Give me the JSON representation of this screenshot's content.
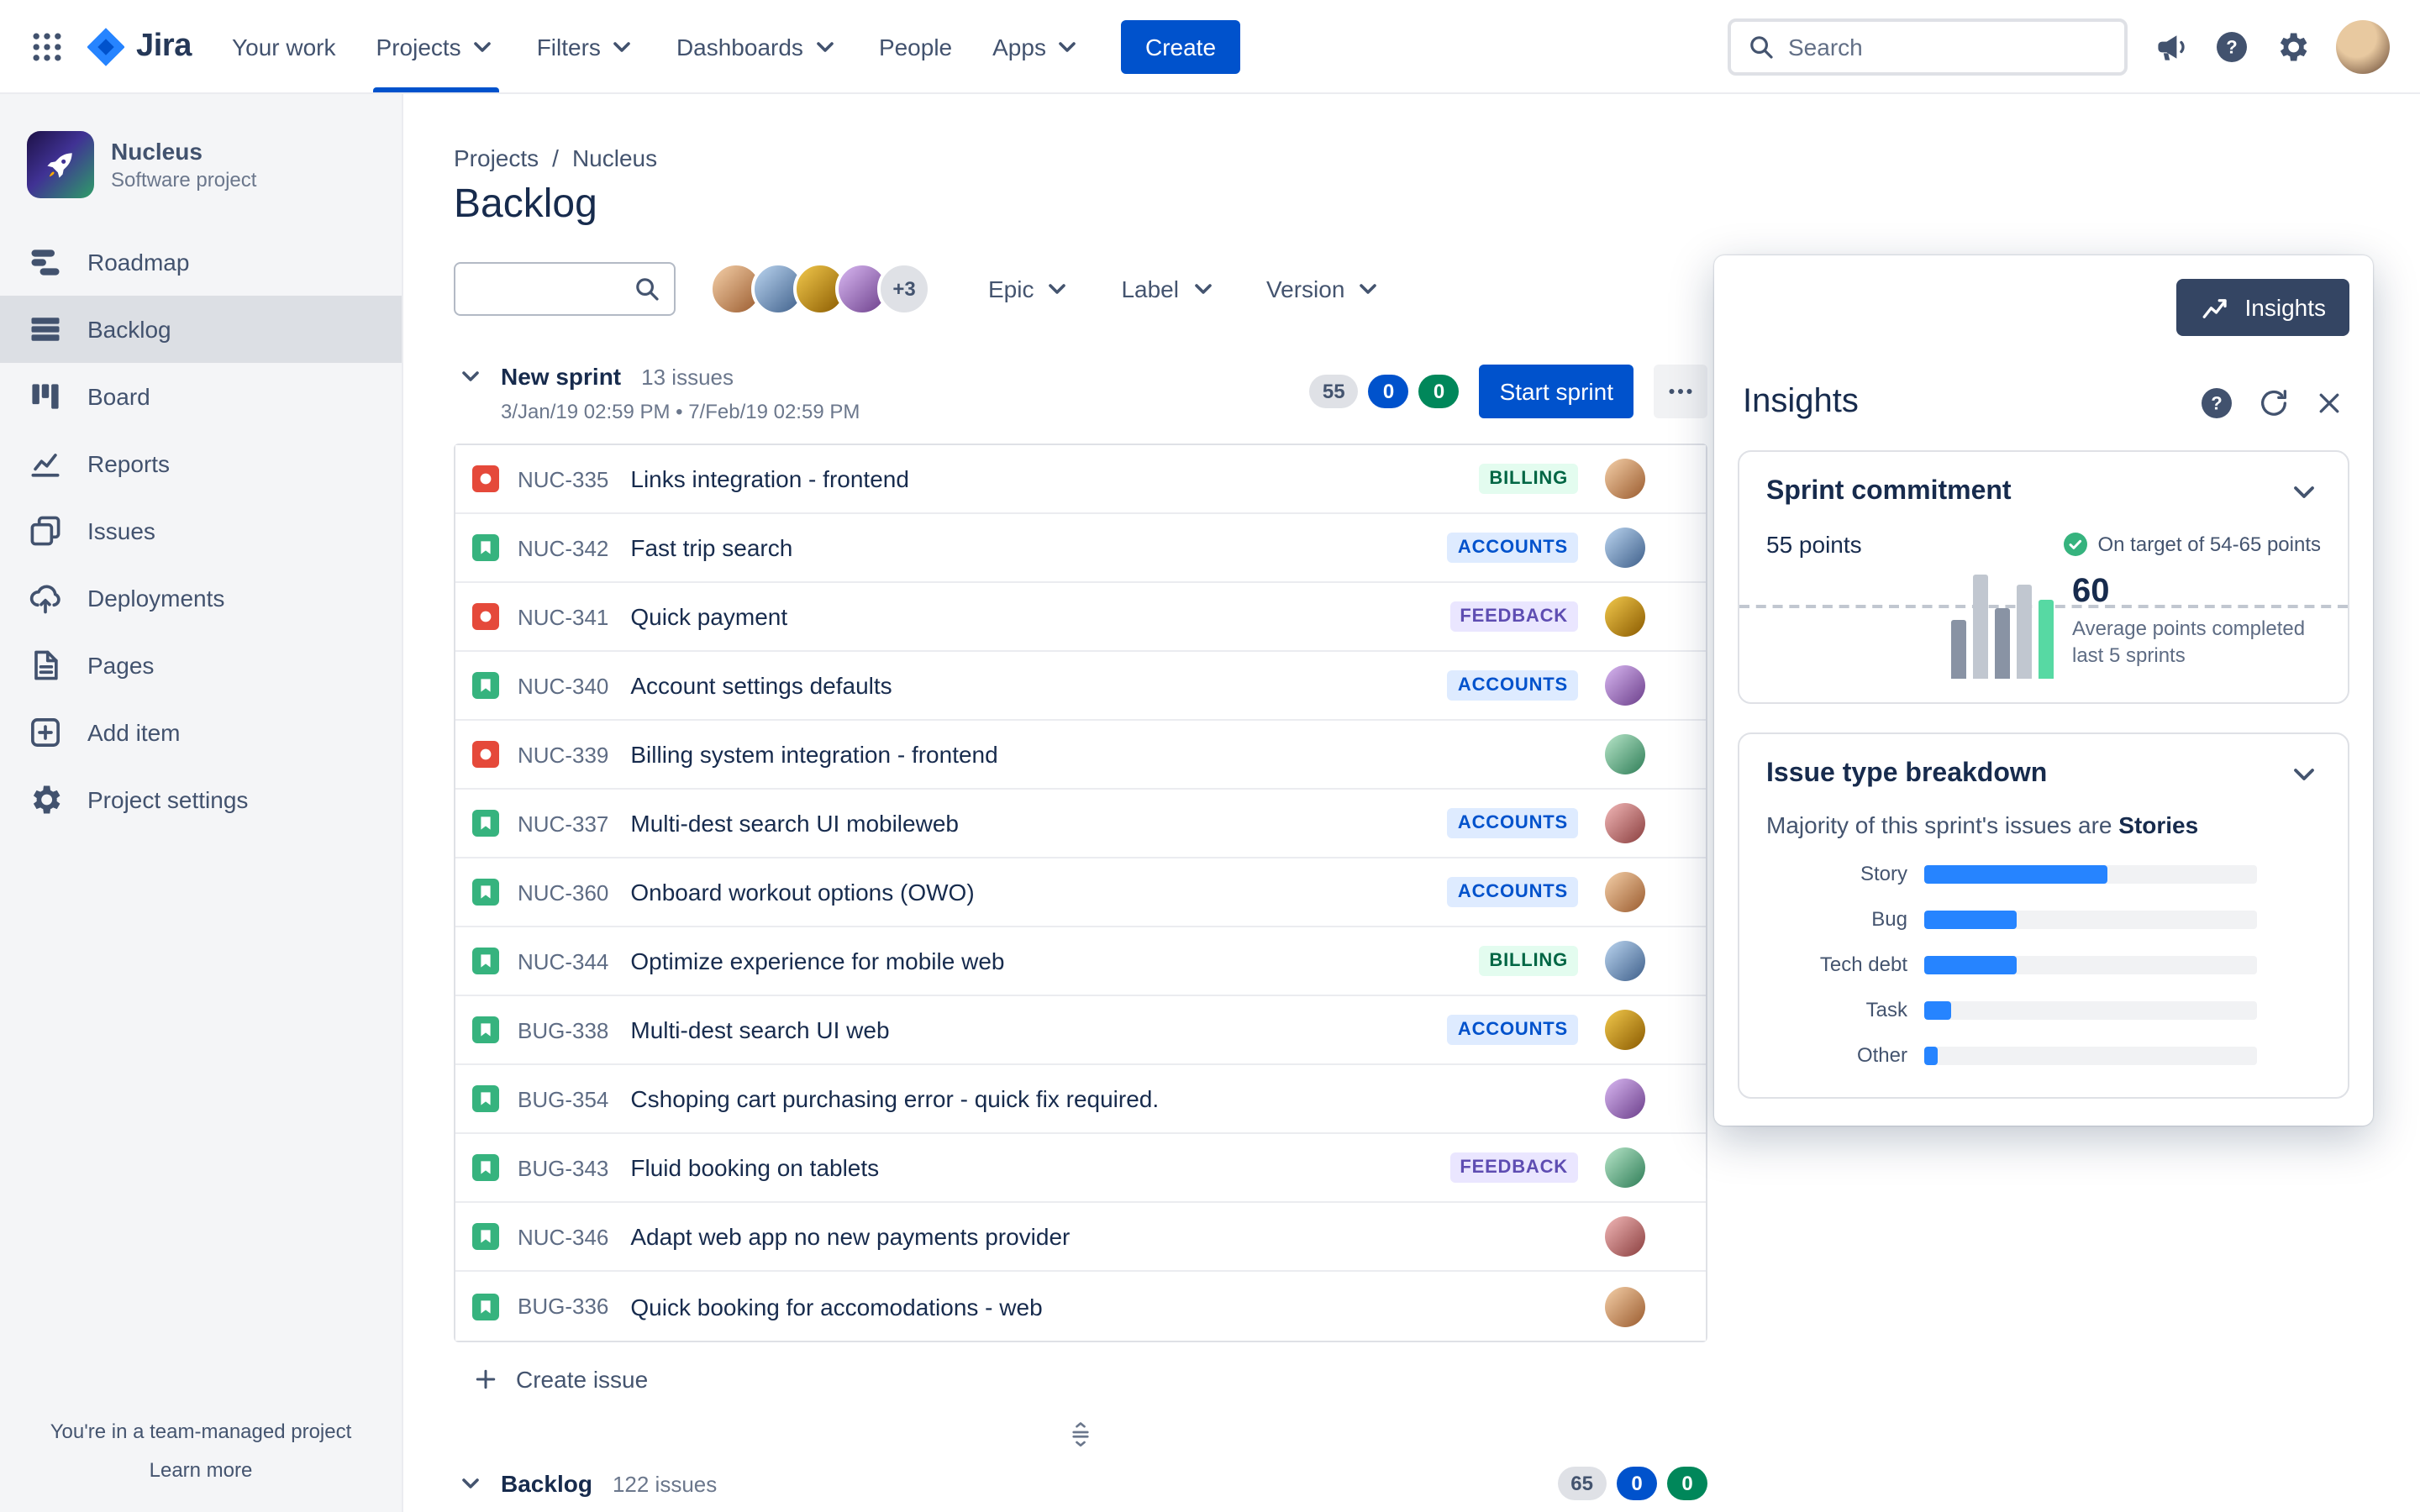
{
  "colors": {
    "accent_blue": "#0052CC",
    "nav_text": "#42526E",
    "text_dark": "#172B4D",
    "text_gray": "#5E6C84",
    "sidebar_bg": "#F4F5F7",
    "border": "#DFE1E6",
    "bug_red": "#E5493A",
    "story_green": "#36B37E",
    "pill_blue": "#0052CC",
    "pill_green": "#00875A",
    "insights_button_bg": "#344563",
    "labels": {
      "BILLING": {
        "bg": "#E3FCEF",
        "fg": "#006644"
      },
      "ACCOUNTS": {
        "bg": "#DEEBFF",
        "fg": "#0052CC"
      },
      "FEEDBACK": {
        "bg": "#EAE6FF",
        "fg": "#5E4DB2"
      }
    }
  },
  "topnav": {
    "logo_text": "Jira",
    "items": [
      {
        "label": "Your work",
        "dropdown": false,
        "active": false
      },
      {
        "label": "Projects",
        "dropdown": true,
        "active": true
      },
      {
        "label": "Filters",
        "dropdown": true,
        "active": false
      },
      {
        "label": "Dashboards",
        "dropdown": true,
        "active": false
      },
      {
        "label": "People",
        "dropdown": false,
        "active": false
      },
      {
        "label": "Apps",
        "dropdown": true,
        "active": false
      }
    ],
    "create_label": "Create",
    "search_placeholder": "Search"
  },
  "sidebar": {
    "project_name": "Nucleus",
    "project_type": "Software project",
    "items": [
      {
        "label": "Roadmap",
        "icon": "roadmap-icon",
        "active": false
      },
      {
        "label": "Backlog",
        "icon": "backlog-icon",
        "active": true
      },
      {
        "label": "Board",
        "icon": "board-icon",
        "active": false
      },
      {
        "label": "Reports",
        "icon": "reports-icon",
        "active": false
      },
      {
        "label": "Issues",
        "icon": "issues-icon",
        "active": false
      },
      {
        "label": "Deployments",
        "icon": "deployments-icon",
        "active": false
      },
      {
        "label": "Pages",
        "icon": "pages-icon",
        "active": false
      },
      {
        "label": "Add item",
        "icon": "add-item-icon",
        "active": false
      },
      {
        "label": "Project settings",
        "icon": "settings-icon",
        "active": false
      }
    ],
    "footer_text": "You're in a team-managed project",
    "footer_link": "Learn more"
  },
  "main": {
    "breadcrumb": [
      "Projects",
      "Nucleus"
    ],
    "title": "Backlog",
    "filters": {
      "search_value": "",
      "avatar_count": 4,
      "avatars_extra": "+3",
      "dropdowns": [
        "Epic",
        "Label",
        "Version"
      ]
    },
    "sprint": {
      "name": "New sprint",
      "issue_count": "13 issues",
      "date_range": "3/Jan/19 02:59 PM • 7/Feb/19 02:59 PM",
      "badges": [
        {
          "value": "55",
          "color": "gray"
        },
        {
          "value": "0",
          "color": "blue"
        },
        {
          "value": "0",
          "color": "green"
        }
      ],
      "start_button": "Start sprint",
      "issues": [
        {
          "key": "NUC-335",
          "type": "bug",
          "summary": "Links integration - frontend",
          "label": "BILLING"
        },
        {
          "key": "NUC-342",
          "type": "story",
          "summary": "Fast trip search",
          "label": "ACCOUNTS"
        },
        {
          "key": "NUC-341",
          "type": "bug",
          "summary": "Quick payment",
          "label": "FEEDBACK"
        },
        {
          "key": "NUC-340",
          "type": "story",
          "summary": "Account settings defaults",
          "label": "ACCOUNTS"
        },
        {
          "key": "NUC-339",
          "type": "bug",
          "summary": "Billing system integration - frontend",
          "label": null
        },
        {
          "key": "NUC-337",
          "type": "story",
          "summary": "Multi-dest search UI mobileweb",
          "label": "ACCOUNTS"
        },
        {
          "key": "NUC-360",
          "type": "story",
          "summary": "Onboard workout options (OWO)",
          "label": "ACCOUNTS"
        },
        {
          "key": "NUC-344",
          "type": "story",
          "summary": "Optimize experience for mobile web",
          "label": "BILLING"
        },
        {
          "key": "BUG-338",
          "type": "story",
          "summary": "Multi-dest search UI web",
          "label": "ACCOUNTS"
        },
        {
          "key": "BUG-354",
          "type": "story",
          "summary": "Cshoping cart purchasing error - quick fix required.",
          "label": null
        },
        {
          "key": "BUG-343",
          "type": "story",
          "summary": "Fluid booking on tablets",
          "label": "FEEDBACK"
        },
        {
          "key": "NUC-346",
          "type": "story",
          "summary": "Adapt web app no new payments provider",
          "label": null
        },
        {
          "key": "BUG-336",
          "type": "story",
          "summary": "Quick booking for accomodations - web",
          "label": null
        }
      ],
      "create_issue_label": "Create issue"
    },
    "backlog_section": {
      "name": "Backlog",
      "issue_count": "122 issues",
      "badges": [
        {
          "value": "65",
          "color": "gray"
        },
        {
          "value": "0",
          "color": "blue"
        },
        {
          "value": "0",
          "color": "green"
        }
      ]
    }
  },
  "insights": {
    "button_label": "Insights",
    "panel_title": "Insights",
    "sprint_commitment": {
      "title": "Sprint commitment",
      "points": "55 points",
      "target": "On target of 54-65 points",
      "average_value": "60",
      "average_caption": "Average points completed last 5 sprints"
    },
    "issue_breakdown": {
      "title": "Issue type breakdown",
      "subtitle_prefix": "Majority of this sprint's issues are",
      "subtitle_bold": "Stories"
    }
  },
  "chart_data": [
    {
      "type": "bar",
      "title": "Sprint commitment",
      "description": "Points completed in last 5 sprints with target line; current commitment 55 points, target range 54-65",
      "values_relative": [
        54,
        97,
        65,
        88,
        74
      ],
      "bar_colors": [
        "#8993A4",
        "#C1C7D0",
        "#8993A4",
        "#C1C7D0",
        "#57D9A3"
      ],
      "target_line_relative": 66,
      "annotation_value": "60",
      "annotation_caption": "Average points completed last 5 sprints",
      "current_points": 55,
      "target_range": "54-65"
    },
    {
      "type": "bar",
      "orientation": "horizontal",
      "title": "Issue type breakdown",
      "categories": [
        "Story",
        "Bug",
        "Tech debt",
        "Task",
        "Other"
      ],
      "values_percent": [
        55,
        28,
        28,
        8,
        4
      ],
      "bar_color": "#2684FF",
      "track_color": "#F1F2F4",
      "legend": "none",
      "xlim": [
        0,
        100
      ]
    }
  ]
}
